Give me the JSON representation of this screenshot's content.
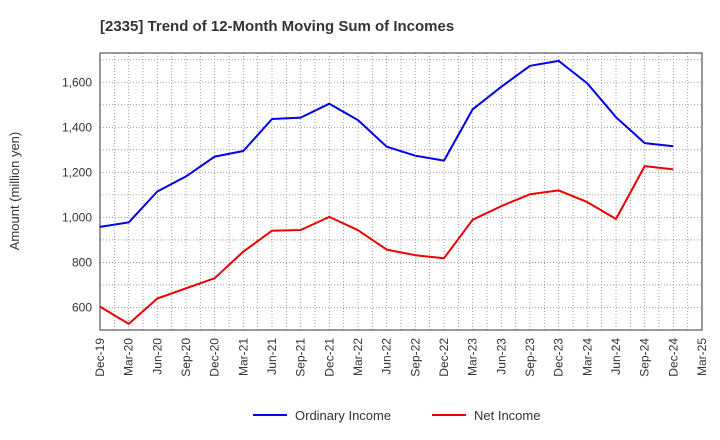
{
  "chart_data": {
    "type": "line",
    "title": "[2335]  Trend of 12-Month Moving Sum of Incomes",
    "xlabel": "",
    "ylabel": "Amount (million yen)",
    "categories": [
      "Dec-19",
      "Mar-20",
      "Jun-20",
      "Sep-20",
      "Dec-20",
      "Mar-21",
      "Jun-21",
      "Sep-21",
      "Dec-21",
      "Mar-22",
      "Jun-22",
      "Sep-22",
      "Dec-22",
      "Mar-23",
      "Jun-23",
      "Sep-23",
      "Dec-23",
      "Mar-24",
      "Jun-24",
      "Sep-24",
      "Dec-24",
      "Mar-25"
    ],
    "ylim": [
      500,
      1730
    ],
    "yticks": [
      600,
      800,
      1000,
      1200,
      1400,
      1600
    ],
    "ytick_labels": [
      "600",
      "800",
      "1,000",
      "1,200",
      "1,400",
      "1,600"
    ],
    "grid": true,
    "legend_position": "bottom",
    "series": [
      {
        "name": "Ordinary Income",
        "color": "#0000ee",
        "values": [
          958,
          978,
          1115,
          1182,
          1270,
          1295,
          1437,
          1443,
          1505,
          1432,
          1314,
          1274,
          1252,
          1480,
          1580,
          1673,
          1695,
          1595,
          1445,
          1330,
          1316,
          null
        ]
      },
      {
        "name": "Net Income",
        "color": "#ee0000",
        "values": [
          604,
          527,
          640,
          685,
          730,
          848,
          941,
          944,
          1002,
          943,
          857,
          832,
          819,
          990,
          1050,
          1103,
          1120,
          1068,
          993,
          1228,
          1213,
          null
        ]
      }
    ]
  }
}
